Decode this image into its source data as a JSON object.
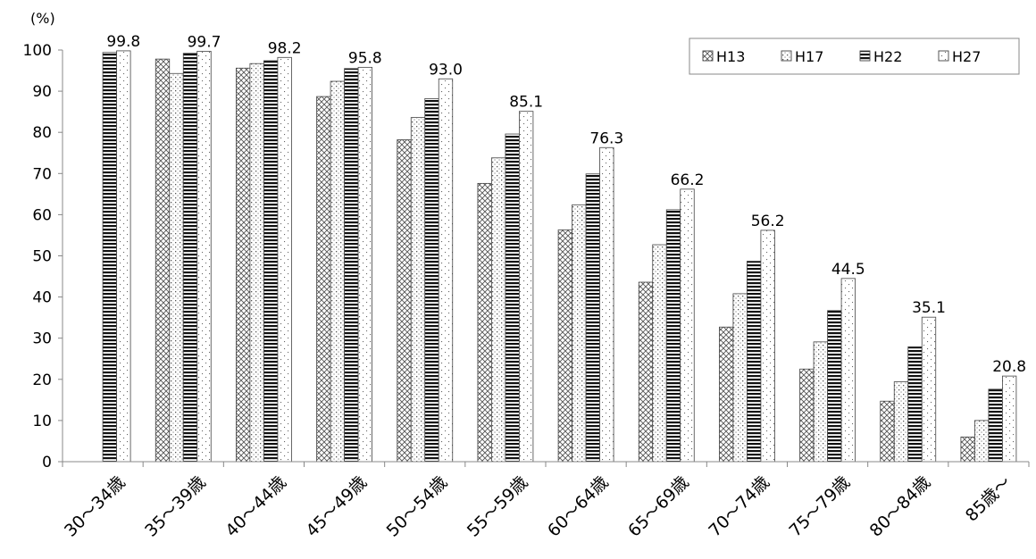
{
  "chart_data": {
    "type": "bar",
    "y_unit_label": "(%)",
    "ylim": [
      0,
      100
    ],
    "y_ticks": [
      0,
      10,
      20,
      30,
      40,
      50,
      60,
      70,
      80,
      90,
      100
    ],
    "grid": false,
    "legend_position": "top-right",
    "categories": [
      "30～34歳",
      "35～39歳",
      "40～44歳",
      "45～49歳",
      "50～54歳",
      "55～59歳",
      "60～64歳",
      "65～69歳",
      "70～74歳",
      "75～79歳",
      "80～84歳",
      "85歳～"
    ],
    "series": [
      {
        "name": "H13",
        "values": [
          null,
          97.8,
          95.6,
          88.7,
          78.2,
          67.6,
          56.3,
          43.6,
          32.7,
          22.5,
          14.7,
          6.0
        ],
        "pattern": "crosshatch"
      },
      {
        "name": "H17",
        "values": [
          null,
          94.3,
          96.7,
          92.4,
          83.6,
          73.8,
          62.4,
          52.7,
          40.8,
          29.1,
          19.4,
          10.0
        ],
        "pattern": "dots"
      },
      {
        "name": "H22",
        "values": [
          99.4,
          99.2,
          97.4,
          95.5,
          88.2,
          79.6,
          69.9,
          61.2,
          48.7,
          36.7,
          27.9,
          17.6
        ],
        "pattern": "horizontal-stripes"
      },
      {
        "name": "H27",
        "values": [
          99.8,
          99.7,
          98.2,
          95.8,
          93.0,
          85.1,
          76.3,
          66.2,
          56.2,
          44.5,
          35.1,
          20.8
        ],
        "pattern": "sparse-dots"
      }
    ],
    "data_labels": {
      "series": "H27",
      "texts": [
        "99.8",
        "99.7",
        "98.2",
        "95.8",
        "93.0",
        "85.1",
        "76.3",
        "66.2",
        "56.2",
        "44.5",
        "35.1",
        "20.8"
      ]
    }
  }
}
